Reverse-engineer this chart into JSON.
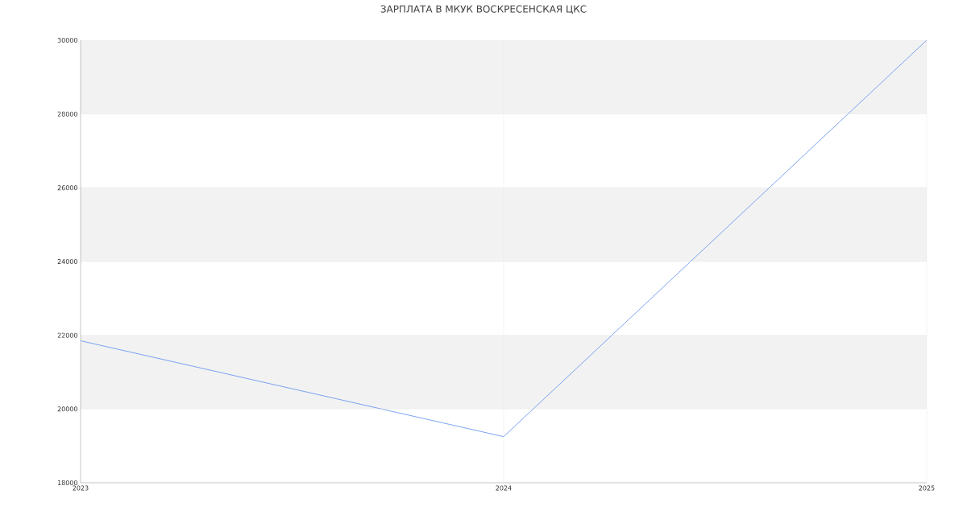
{
  "chart_data": {
    "type": "line",
    "title": "ЗАРПЛАТА В МКУК ВОСКРЕСЕНСКАЯ ЦКС",
    "x": [
      2023,
      2024,
      2025
    ],
    "series": [
      {
        "color": "#6d98ee",
        "values": [
          21850,
          19250,
          30000
        ]
      }
    ],
    "xlim": [
      2023,
      2025
    ],
    "xticks": [
      2023,
      2024,
      2025
    ],
    "ylim": [
      18000,
      30000
    ],
    "yticks": [
      18000,
      20000,
      22000,
      24000,
      26000,
      28000,
      30000
    ],
    "bands": [
      {
        "axis": "y",
        "from": 20000,
        "to": 22000,
        "color": "#f2f2f2"
      },
      {
        "axis": "y",
        "from": 24000,
        "to": 26000,
        "color": "#f2f2f2"
      },
      {
        "axis": "y",
        "from": 28000,
        "to": 30000,
        "color": "#f2f2f2"
      }
    ],
    "grid": true,
    "marker": "none",
    "line_style": "solid"
  }
}
